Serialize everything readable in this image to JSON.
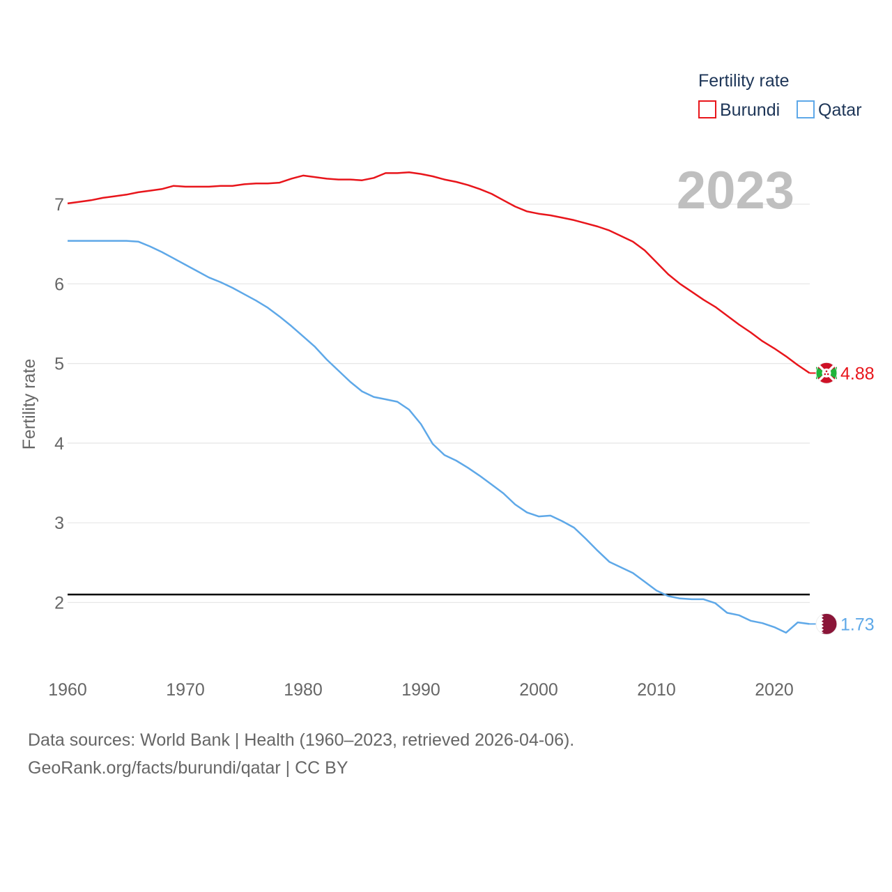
{
  "chart_data": {
    "type": "line",
    "ylabel": "Fertility rate",
    "xlabel": "",
    "big_year": "2023",
    "legend": {
      "title": "Fertility rate",
      "placement": "top-right"
    },
    "xlim": [
      1960,
      2023
    ],
    "ylim": [
      1.35,
      7.7
    ],
    "x_ticks": [
      "1960",
      "1970",
      "1980",
      "1990",
      "2000",
      "2010",
      "2020"
    ],
    "y_ticks": [
      "2",
      "3",
      "4",
      "5",
      "6",
      "7"
    ],
    "reference_line": {
      "y": 2.1,
      "color": "#000000"
    },
    "years": [
      1960,
      1961,
      1962,
      1963,
      1964,
      1965,
      1966,
      1967,
      1968,
      1969,
      1970,
      1971,
      1972,
      1973,
      1974,
      1975,
      1976,
      1977,
      1978,
      1979,
      1980,
      1981,
      1982,
      1983,
      1984,
      1985,
      1986,
      1987,
      1988,
      1989,
      1990,
      1991,
      1992,
      1993,
      1994,
      1995,
      1996,
      1997,
      1998,
      1999,
      2000,
      2001,
      2002,
      2003,
      2004,
      2005,
      2006,
      2007,
      2008,
      2009,
      2010,
      2011,
      2012,
      2013,
      2014,
      2015,
      2016,
      2017,
      2018,
      2019,
      2020,
      2021,
      2022,
      2023
    ],
    "series": [
      {
        "name": "Burundi",
        "color": "#e8151b",
        "end_label": "4.88",
        "values": [
          7.01,
          7.03,
          7.05,
          7.08,
          7.1,
          7.12,
          7.15,
          7.17,
          7.19,
          7.23,
          7.22,
          7.22,
          7.22,
          7.23,
          7.23,
          7.25,
          7.26,
          7.26,
          7.27,
          7.32,
          7.36,
          7.34,
          7.32,
          7.31,
          7.31,
          7.3,
          7.33,
          7.39,
          7.39,
          7.4,
          7.38,
          7.35,
          7.31,
          7.28,
          7.24,
          7.19,
          7.13,
          7.05,
          6.97,
          6.91,
          6.88,
          6.86,
          6.83,
          6.8,
          6.76,
          6.72,
          6.67,
          6.6,
          6.53,
          6.42,
          6.27,
          6.12,
          6.0,
          5.9,
          5.8,
          5.71,
          5.6,
          5.49,
          5.39,
          5.28,
          5.19,
          5.09,
          4.98,
          4.88
        ]
      },
      {
        "name": "Qatar",
        "color": "#5ea8e8",
        "end_label": "1.73",
        "values": [
          6.54,
          6.54,
          6.54,
          6.54,
          6.54,
          6.54,
          6.53,
          6.47,
          6.4,
          6.32,
          6.24,
          6.16,
          6.08,
          6.02,
          5.95,
          5.87,
          5.79,
          5.7,
          5.59,
          5.47,
          5.34,
          5.21,
          5.05,
          4.91,
          4.77,
          4.65,
          4.58,
          4.55,
          4.52,
          4.42,
          4.24,
          3.99,
          3.85,
          3.78,
          3.69,
          3.59,
          3.48,
          3.37,
          3.23,
          3.13,
          3.08,
          3.09,
          3.02,
          2.94,
          2.8,
          2.65,
          2.51,
          2.44,
          2.37,
          2.26,
          2.15,
          2.08,
          2.05,
          2.04,
          2.04,
          1.99,
          1.87,
          1.84,
          1.77,
          1.74,
          1.69,
          1.62,
          1.75,
          1.73
        ]
      }
    ]
  },
  "footer": {
    "line1": "Data sources: World Bank | Health (1960–2023, retrieved 2026-04-06).",
    "line2": "GeoRank.org/facts/burundi/qatar | CC BY"
  }
}
